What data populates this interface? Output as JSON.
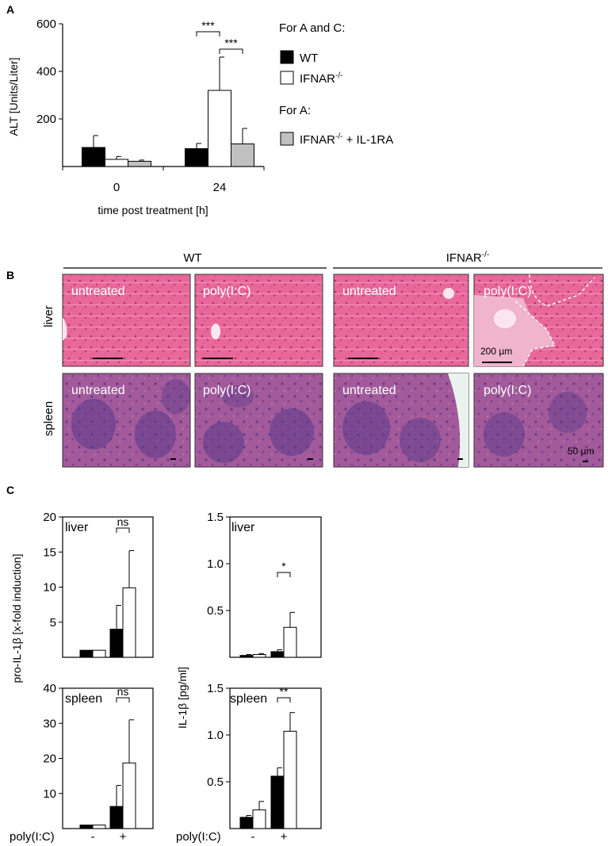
{
  "panels": {
    "A": "A",
    "B": "B",
    "C": "C"
  },
  "legend": {
    "for_ac": "For A and C:",
    "wt": "WT",
    "ifnar_base": "IFNAR",
    "ifnar_sup": "-/-",
    "for_a": "For A:",
    "ifnar_il1ra_suffix": " + IL-1RA"
  },
  "histology": {
    "wt_header": "WT",
    "ifnar_header_base": "IFNAR",
    "ifnar_header_sup": "-/-",
    "row_liver": "liver",
    "row_spleen": "spleen",
    "untreated": "untreated",
    "polyic": "poly(I:C)",
    "scale_liver": "200 µm",
    "scale_spleen": "50 µm"
  },
  "panelC": {
    "left_ylabel": "pro-IL-1β [x-fold induction]",
    "right_ylabel": "IL-1β [pg/ml]",
    "tile_liver": "liver",
    "tile_spleen": "spleen",
    "x_label": "poly(I:C)",
    "minus": "-",
    "plus": "+"
  },
  "colors": {
    "wt": "#000000",
    "ifnar": "#ffffff",
    "ifnar_il1ra": "#c0c0c0",
    "liver_tissue": "#e8689a",
    "spleen_tissue": "#a25a9a"
  },
  "chart_data": [
    {
      "id": "A",
      "type": "bar",
      "ylabel": "ALT [Units/Liter]",
      "xlabel": "time post treatment [h]",
      "categories": [
        "0",
        "24"
      ],
      "ylim": [
        0,
        600
      ],
      "yticks": [
        "600",
        "400",
        "200"
      ],
      "series": [
        {
          "name": "WT",
          "values": [
            80,
            75
          ],
          "errors": [
            50,
            22
          ]
        },
        {
          "name": "IFNAR-/-",
          "values": [
            30,
            320
          ],
          "errors": [
            12,
            140
          ]
        },
        {
          "name": "IFNAR-/- + IL-1RA",
          "values": [
            22,
            95
          ],
          "errors": [
            5,
            65
          ]
        }
      ],
      "significance": [
        "***",
        "***"
      ]
    },
    {
      "id": "C-liver-pro",
      "type": "bar",
      "categories": [
        "-",
        "+"
      ],
      "ylim": [
        0,
        20
      ],
      "yticks": [
        "20",
        "15",
        "10",
        "5"
      ],
      "series": [
        {
          "name": "WT",
          "values": [
            1,
            4
          ],
          "errors": [
            0,
            3.4
          ]
        },
        {
          "name": "IFNAR-/-",
          "values": [
            1,
            9.9
          ],
          "errors": [
            0,
            5.3
          ]
        }
      ],
      "significance": [
        "ns"
      ]
    },
    {
      "id": "C-liver-il1b",
      "type": "bar",
      "categories": [
        "-",
        "+"
      ],
      "ylim": [
        0,
        1.5
      ],
      "yticks": [
        "1.5",
        "1.0",
        "0.5"
      ],
      "series": [
        {
          "name": "WT",
          "values": [
            0.02,
            0.06
          ],
          "errors": [
            0.01,
            0.02
          ]
        },
        {
          "name": "IFNAR-/-",
          "values": [
            0.03,
            0.32
          ],
          "errors": [
            0.01,
            0.16
          ]
        }
      ],
      "significance": [
        "*"
      ]
    },
    {
      "id": "C-spleen-pro",
      "type": "bar",
      "categories": [
        "-",
        "+"
      ],
      "ylim": [
        0,
        40
      ],
      "yticks": [
        "40",
        "30",
        "20",
        "10"
      ],
      "series": [
        {
          "name": "WT",
          "values": [
            1,
            6.3
          ],
          "errors": [
            0,
            6
          ]
        },
        {
          "name": "IFNAR-/-",
          "values": [
            1,
            18.7
          ],
          "errors": [
            0,
            12.3
          ]
        }
      ],
      "significance": [
        "ns"
      ]
    },
    {
      "id": "C-spleen-il1b",
      "type": "bar",
      "categories": [
        "-",
        "+"
      ],
      "ylim": [
        0,
        1.5
      ],
      "yticks": [
        "1.5",
        "1.0",
        "0.5"
      ],
      "series": [
        {
          "name": "WT",
          "values": [
            0.12,
            0.56
          ],
          "errors": [
            0.02,
            0.09
          ]
        },
        {
          "name": "IFNAR-/-",
          "values": [
            0.2,
            1.04
          ],
          "errors": [
            0.09,
            0.2
          ]
        }
      ],
      "significance": [
        "**"
      ]
    }
  ]
}
